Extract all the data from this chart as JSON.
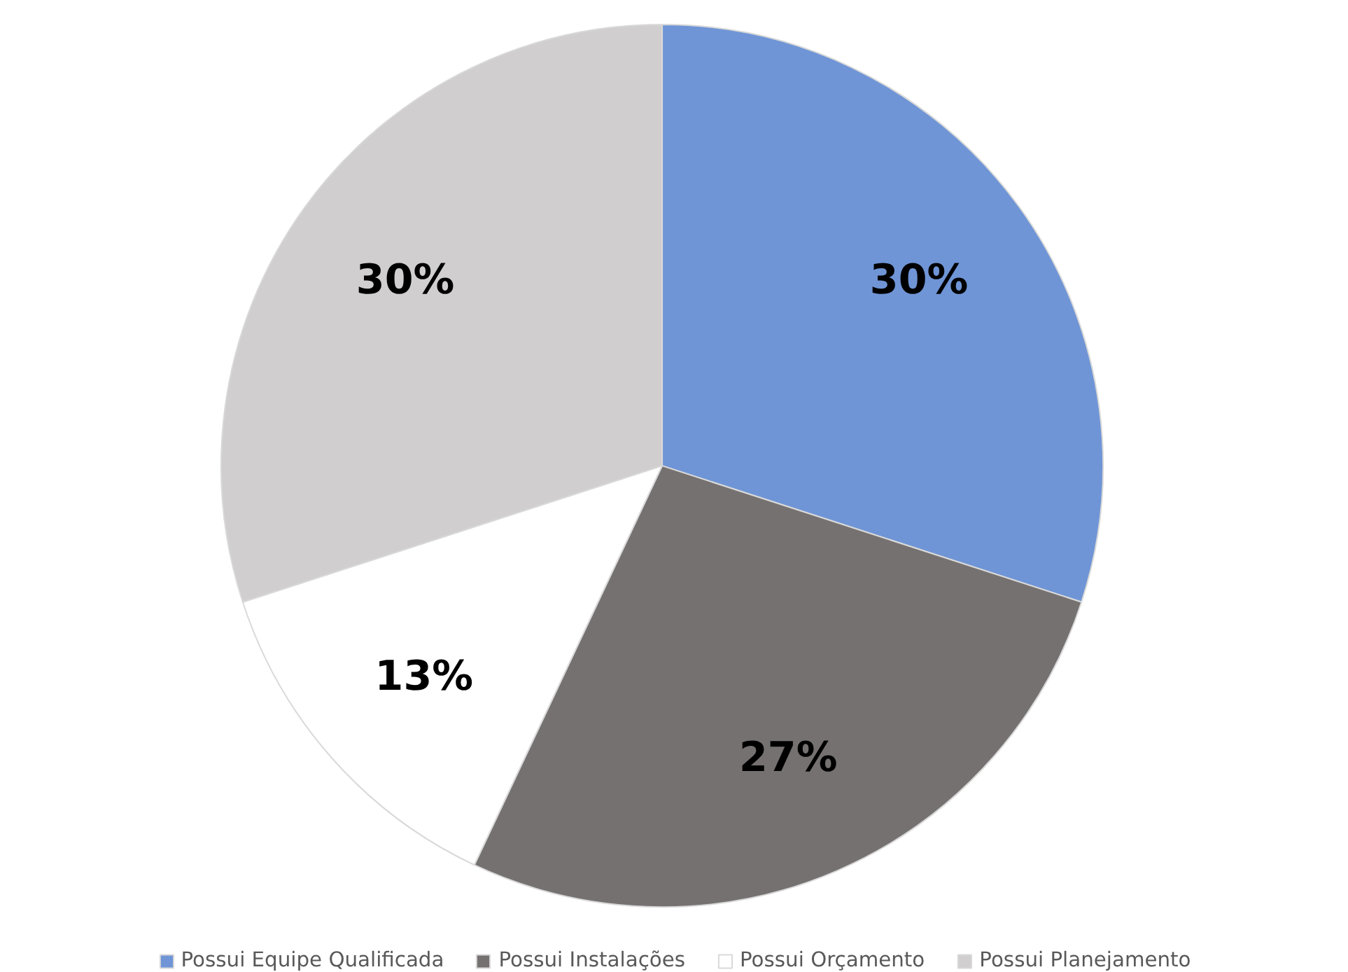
{
  "chart_data": {
    "type": "pie",
    "categories": [
      "Possui Equipe Qualificada",
      "Possui Instalações",
      "Possui Orçamento",
      "Possui Planejamento"
    ],
    "values": [
      30,
      27,
      13,
      30
    ],
    "colors": [
      "#6f95d6",
      "#767171",
      "#ffffff",
      "#d0cece"
    ],
    "value_labels": [
      "30%",
      "27%",
      "13%",
      "30%"
    ],
    "legend": "bottom"
  }
}
